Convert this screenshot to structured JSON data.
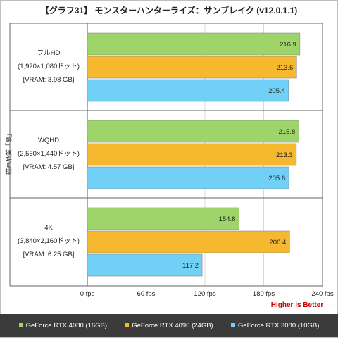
{
  "title": "【グラフ31】 モンスターハンターライズ：サンブレイク (v12.0.1.1)",
  "y_axis_label": "描画品質「最」",
  "better_label": "Higher is Better →",
  "colors": {
    "rtx4080": "#9ed46a",
    "rtx4090": "#f5b82e",
    "rtx3080": "#70d0f5"
  },
  "chart_data": {
    "type": "bar",
    "orientation": "horizontal",
    "categories": [
      {
        "name": "フルHD",
        "resolution": "(1,920×1,080ドット)",
        "vram": "[VRAM: 3.98 GB]"
      },
      {
        "name": "WQHD",
        "resolution": "(2,560×1,440ドット)",
        "vram": "[VRAM: 4.57 GB]"
      },
      {
        "name": "4K",
        "resolution": "(3,840×2,160ドット)",
        "vram": "[VRAM: 6.25 GB]"
      }
    ],
    "series": [
      {
        "name": "GeForce RTX 4080 (16GB)",
        "color": "#9ed46a",
        "values": [
          216.9,
          215.8,
          154.8
        ],
        "labels": [
          "216.9",
          "215.8",
          "154.8"
        ]
      },
      {
        "name": "GeForce RTX 4090 (24GB)",
        "color": "#f5b82e",
        "values": [
          213.6,
          213.3,
          206.4
        ],
        "labels": [
          "213.6",
          "213.3",
          "206.4"
        ]
      },
      {
        "name": "GeForce RTX 3080 (10GB)",
        "color": "#70d0f5",
        "values": [
          205.4,
          205.6,
          117.2
        ],
        "labels": [
          "205.4",
          "205.6",
          "117.2"
        ]
      }
    ],
    "xlim": [
      0,
      240
    ],
    "xticks": [
      0,
      60,
      120,
      180,
      240
    ],
    "xtick_labels": [
      "0 fps",
      "60 fps",
      "120 fps",
      "180 fps",
      "240 fps"
    ],
    "grid": true
  }
}
